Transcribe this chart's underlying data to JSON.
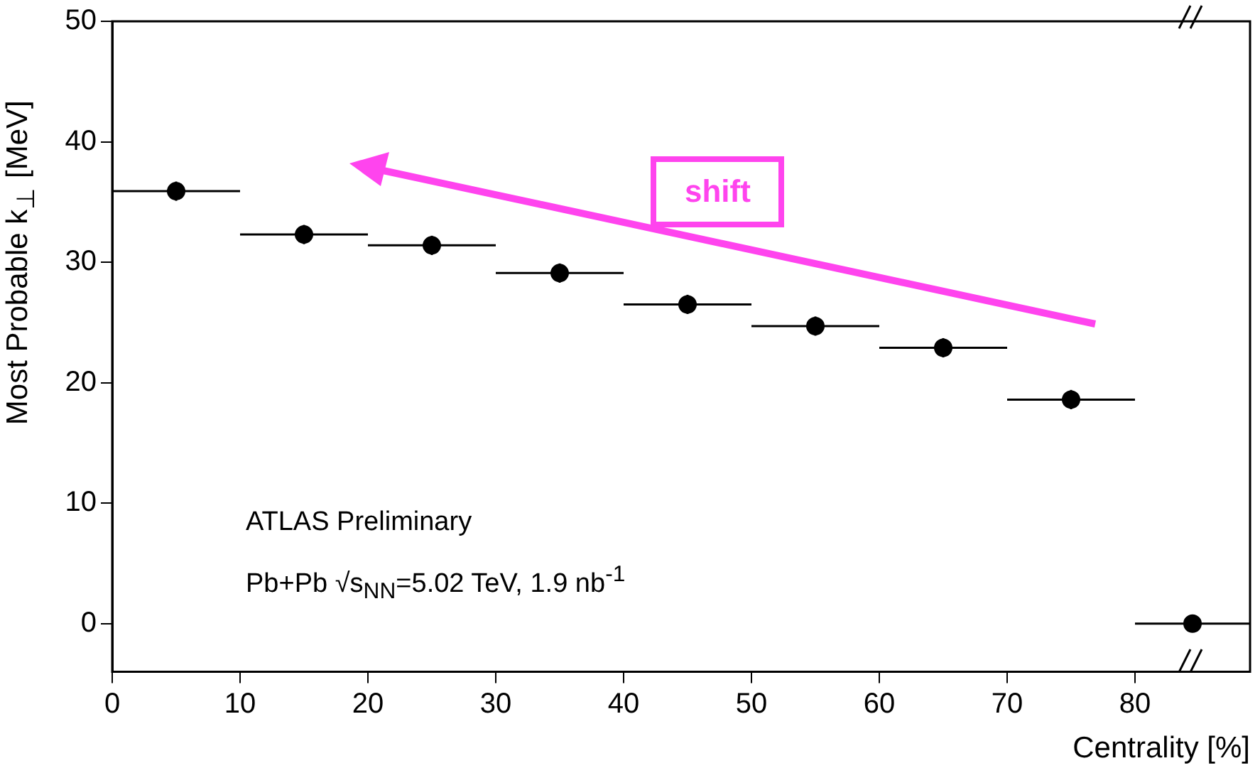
{
  "chart_data": {
    "type": "scatter",
    "xlabel": "Centrality [%]",
    "ylabel": "Most Probable k$_{⊥}$ [MeV]",
    "x": [
      5,
      15,
      25,
      35,
      45,
      55,
      65,
      75,
      84.5
    ],
    "series": [
      {
        "color": "#000000",
        "values": [
          35.9,
          32.3,
          31.4,
          29.1,
          26.5,
          24.7,
          22.9,
          18.6,
          0
        ],
        "errors": [
          0.8,
          0.8,
          0.8,
          0.8,
          0.8,
          0.8,
          0.8,
          0.8,
          null
        ],
        "xerrors": [
          5,
          5,
          5,
          5,
          5,
          5,
          5,
          5,
          4.5
        ]
      }
    ],
    "xlim": [
      0,
      89
    ],
    "xticks": [
      0,
      10,
      20,
      30,
      40,
      50,
      60,
      70,
      80
    ],
    "ylim": [
      -4,
      50
    ],
    "yticks": [
      0,
      10,
      20,
      30,
      40,
      50
    ],
    "marker": "circle",
    "grid": false,
    "legend": false,
    "annotations": [
      "ATLAS Preliminary",
      "Pb+Pb √s$_{NN}$=5.02 TeV, 1.9 nb$^{-1}$",
      "shift"
    ]
  }
}
